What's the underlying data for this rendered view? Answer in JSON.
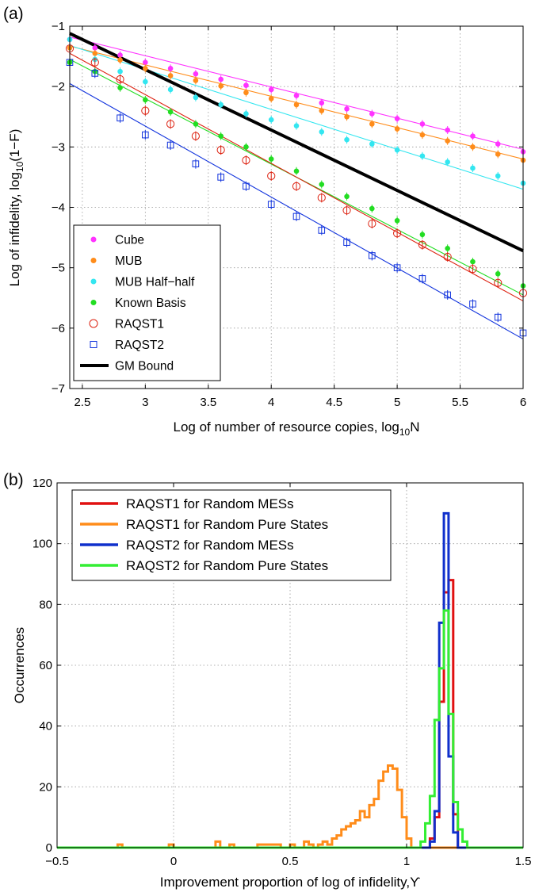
{
  "chart_data": [
    {
      "panel_label": "(a)",
      "type": "scatter",
      "xlabel": "Log of number of resource copies, log",
      "xlabel_sub": "10",
      "xlabel_tail": "N",
      "ylabel": "Log of infidelity, log",
      "ylabel_sub": "10",
      "ylabel_tail": "(1−F)",
      "xlim": [
        2.4,
        6.0
      ],
      "ylim": [
        -7,
        -1
      ],
      "xticks": [
        2.5,
        3,
        3.5,
        4,
        4.5,
        5,
        5.5,
        6
      ],
      "xtick_labels": [
        "2.5",
        "3",
        "3.5",
        "4",
        "4.5",
        "5",
        "5.5",
        "6"
      ],
      "yticks": [
        -7,
        -6,
        -5,
        -4,
        -3,
        -2,
        -1
      ],
      "ytick_labels": [
        "−7",
        "−6",
        "−5",
        "−4",
        "−3",
        "−2",
        "−1"
      ],
      "grid": true,
      "legend_position": "bottom-left",
      "x": [
        2.4,
        2.6,
        2.8,
        3.0,
        3.2,
        3.4,
        3.6,
        3.8,
        4.0,
        4.2,
        4.4,
        4.6,
        4.8,
        5.0,
        5.2,
        5.4,
        5.6,
        5.8,
        6.0
      ],
      "series": [
        {
          "name": "Cube",
          "marker": "dot",
          "color": "#ff33ff",
          "y": [
            -1.22,
            -1.36,
            -1.48,
            -1.6,
            -1.7,
            -1.79,
            -1.88,
            -1.98,
            -2.05,
            -2.15,
            -2.27,
            -2.37,
            -2.45,
            -2.53,
            -2.62,
            -2.72,
            -2.82,
            -2.95,
            -3.08
          ],
          "fit": [
            [
              2.4,
              -1.18
            ],
            [
              6.0,
              -3.04
            ]
          ]
        },
        {
          "name": "MUB",
          "marker": "dot",
          "color": "#ff8c1a",
          "y": [
            -1.36,
            -1.45,
            -1.56,
            -1.7,
            -1.82,
            -1.9,
            -1.99,
            -2.1,
            -2.2,
            -2.3,
            -2.4,
            -2.5,
            -2.62,
            -2.7,
            -2.8,
            -2.9,
            -3.0,
            -3.12,
            -3.22
          ],
          "fit": [
            [
              2.4,
              -1.33
            ],
            [
              6.0,
              -3.2
            ]
          ]
        },
        {
          "name": "MUB Half−half",
          "marker": "dot",
          "color": "#33e6f0",
          "y": [
            -1.22,
            -1.55,
            -1.75,
            -1.92,
            -2.05,
            -2.18,
            -2.3,
            -2.45,
            -2.55,
            -2.65,
            -2.75,
            -2.88,
            -2.95,
            -3.05,
            -3.15,
            -3.25,
            -3.35,
            -3.48,
            -3.6
          ],
          "fit": [
            [
              2.4,
              -1.32
            ],
            [
              6.0,
              -3.7
            ]
          ]
        },
        {
          "name": "Known Basis",
          "marker": "dot",
          "color": "#22dd22",
          "y": [
            -1.6,
            -1.75,
            -2.02,
            -2.22,
            -2.42,
            -2.62,
            -2.82,
            -3.0,
            -3.2,
            -3.4,
            -3.62,
            -3.82,
            -4.02,
            -4.22,
            -4.45,
            -4.68,
            -4.9,
            -5.1,
            -5.3
          ],
          "fit": [
            [
              2.4,
              -1.55
            ],
            [
              6.0,
              -5.45
            ]
          ]
        },
        {
          "name": "RAQST1",
          "marker": "circle",
          "color": "#dd2211",
          "y": [
            -1.37,
            -1.6,
            -1.88,
            -2.4,
            -2.62,
            -2.82,
            -3.05,
            -3.22,
            -3.48,
            -3.65,
            -3.84,
            -4.05,
            -4.27,
            -4.43,
            -4.62,
            -4.82,
            -5.02,
            -5.25,
            -5.42
          ],
          "fit": [
            [
              2.4,
              -1.45
            ],
            [
              6.0,
              -5.55
            ]
          ]
        },
        {
          "name": "RAQST2",
          "marker": "square",
          "color": "#1133dd",
          "y": [
            -1.6,
            -1.78,
            -2.52,
            -2.8,
            -2.97,
            -3.28,
            -3.5,
            -3.65,
            -3.95,
            -4.15,
            -4.38,
            -4.58,
            -4.8,
            -5.0,
            -5.18,
            -5.45,
            -5.6,
            -5.82,
            -6.08
          ],
          "fit": [
            [
              2.4,
              -1.95
            ],
            [
              6.0,
              -6.18
            ]
          ]
        },
        {
          "name": "GM Bound",
          "marker": "none",
          "color": "#000000",
          "fit": [
            [
              2.4,
              -1.12
            ],
            [
              6.0,
              -4.72
            ]
          ]
        }
      ]
    },
    {
      "panel_label": "(b)",
      "type": "histogram",
      "xlabel": "Improvement proportion of log of infidelity,",
      "xlabel_symbol": "ϒ",
      "ylabel": "Occurrences",
      "xlim": [
        -0.5,
        1.5
      ],
      "ylim": [
        0,
        120
      ],
      "xticks": [
        -0.5,
        0,
        0.5,
        1,
        1.5
      ],
      "xtick_labels": [
        "−0.5",
        "0",
        "0.5",
        "1",
        "1.5"
      ],
      "yticks": [
        0,
        20,
        40,
        60,
        80,
        100,
        120
      ],
      "ytick_labels": [
        "0",
        "20",
        "40",
        "60",
        "80",
        "100",
        "120"
      ],
      "grid": true,
      "legend_position": "top-left",
      "bin_width": 0.02,
      "series": [
        {
          "name": "RAQST1 for Random MESs",
          "color": "#e01010",
          "bins": [
            [
              1.1,
              3
            ],
            [
              1.12,
              10
            ],
            [
              1.14,
              48
            ],
            [
              1.16,
              84
            ],
            [
              1.18,
              88
            ],
            [
              1.2,
              11
            ],
            [
              1.22,
              0
            ]
          ]
        },
        {
          "name": "RAQST1 for Random Pure States",
          "color": "#ff8c1a",
          "bins": [
            [
              -0.24,
              1
            ],
            [
              -0.22,
              0
            ],
            [
              -0.02,
              1
            ],
            [
              0.0,
              0
            ],
            [
              0.18,
              2
            ],
            [
              0.2,
              0
            ],
            [
              0.24,
              1
            ],
            [
              0.26,
              0
            ],
            [
              0.36,
              1
            ],
            [
              0.38,
              1
            ],
            [
              0.4,
              1
            ],
            [
              0.42,
              1
            ],
            [
              0.44,
              1
            ],
            [
              0.46,
              0
            ],
            [
              0.5,
              1
            ],
            [
              0.52,
              0
            ],
            [
              0.56,
              2
            ],
            [
              0.58,
              1
            ],
            [
              0.6,
              0
            ],
            [
              0.62,
              1
            ],
            [
              0.64,
              2
            ],
            [
              0.66,
              1
            ],
            [
              0.68,
              3
            ],
            [
              0.7,
              4
            ],
            [
              0.72,
              6
            ],
            [
              0.74,
              7
            ],
            [
              0.76,
              8
            ],
            [
              0.78,
              9
            ],
            [
              0.8,
              12
            ],
            [
              0.82,
              10
            ],
            [
              0.84,
              14
            ],
            [
              0.86,
              16
            ],
            [
              0.88,
              22
            ],
            [
              0.9,
              25
            ],
            [
              0.92,
              27
            ],
            [
              0.94,
              26
            ],
            [
              0.96,
              19
            ],
            [
              0.98,
              10
            ],
            [
              1.0,
              3
            ],
            [
              1.02,
              0
            ]
          ]
        },
        {
          "name": "RAQST2 for Random MESs",
          "color": "#1030cc",
          "bins": [
            [
              1.1,
              2
            ],
            [
              1.12,
              12
            ],
            [
              1.14,
              74
            ],
            [
              1.16,
              110
            ],
            [
              1.18,
              30
            ],
            [
              1.2,
              5
            ],
            [
              1.22,
              0
            ]
          ]
        },
        {
          "name": "RAQST2 for Random Pure States",
          "color": "#33ee33",
          "bins": [
            [
              1.06,
              2
            ],
            [
              1.08,
              8
            ],
            [
              1.1,
              17
            ],
            [
              1.12,
              42
            ],
            [
              1.14,
              59
            ],
            [
              1.16,
              78
            ],
            [
              1.18,
              44
            ],
            [
              1.2,
              15
            ],
            [
              1.22,
              6
            ],
            [
              1.24,
              2
            ],
            [
              1.26,
              0
            ]
          ]
        }
      ]
    }
  ]
}
